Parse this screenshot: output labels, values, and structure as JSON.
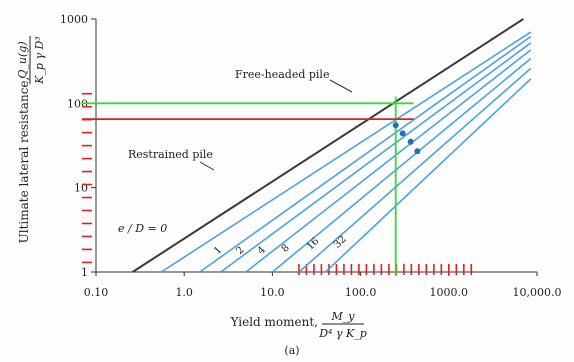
{
  "chart_data": {
    "type": "line",
    "x_scale": "log",
    "y_scale": "log",
    "xlim": [
      0.1,
      10000
    ],
    "ylim": [
      1,
      1000
    ],
    "x_ticks": [
      {
        "v": 0.1,
        "label": "0.10"
      },
      {
        "v": 1,
        "label": "1.0"
      },
      {
        "v": 10,
        "label": "10.0"
      },
      {
        "v": 100,
        "label": "100.0"
      },
      {
        "v": 1000,
        "label": "1000.0"
      },
      {
        "v": 10000,
        "label": "10,000.0"
      }
    ],
    "y_ticks": [
      {
        "v": 1,
        "label": "1"
      },
      {
        "v": 10,
        "label": "10"
      },
      {
        "v": 100,
        "label": "100"
      },
      {
        "v": 1000,
        "label": "1000"
      }
    ],
    "ylabel": "Ultimate lateral resistance,",
    "ylabel_fraction": {
      "num": "Q_u(g)",
      "den": "K_p γ D³"
    },
    "xlabel": "Yield moment,",
    "xlabel_fraction": {
      "num": "M_y",
      "den": "D⁴ γ K_p"
    },
    "caption": "(a)",
    "restrained_series": {
      "name": "Restrained pile",
      "color": "#3a3a3a",
      "points": [
        [
          0.26,
          1
        ],
        [
          7000,
          1000
        ]
      ]
    },
    "free_headed_label": "Free-headed pile",
    "eD_label": "e / D = 0",
    "series": [
      {
        "eD": "0",
        "color": "#4aa3df",
        "points": [
          [
            0.55,
            1
          ],
          [
            8500,
            700
          ]
        ]
      },
      {
        "eD": "1",
        "color": "#4aa3df",
        "points": [
          [
            1.5,
            1
          ],
          [
            8500,
            620
          ]
        ]
      },
      {
        "eD": "2",
        "color": "#4aa3df",
        "points": [
          [
            2.6,
            1
          ],
          [
            8500,
            520
          ]
        ]
      },
      {
        "eD": "4",
        "color": "#4aa3df",
        "points": [
          [
            5,
            1
          ],
          [
            8500,
            430
          ]
        ]
      },
      {
        "eD": "8",
        "color": "#4aa3df",
        "points": [
          [
            10,
            1
          ],
          [
            8500,
            340
          ]
        ]
      },
      {
        "eD": "16",
        "color": "#4aa3df",
        "points": [
          [
            20,
            1
          ],
          [
            8500,
            260
          ]
        ]
      },
      {
        "eD": "32",
        "color": "#4aa3df",
        "points": [
          [
            40,
            1
          ],
          [
            8500,
            195
          ]
        ]
      }
    ],
    "series_markers": [
      [
        250,
        55
      ],
      [
        300,
        44
      ],
      [
        370,
        35
      ],
      [
        440,
        27
      ]
    ],
    "guide_green": {
      "color": "#33dd33",
      "x": 250,
      "y": 100
    },
    "guide_red": {
      "color": "#e02020",
      "y": 65
    },
    "tick_marks_color": "#e02020",
    "y_ladder": {
      "from": 1.3,
      "to": 130,
      "count": 14
    },
    "x_ladder": {
      "from": 20,
      "to": 1800,
      "count": 24
    }
  }
}
